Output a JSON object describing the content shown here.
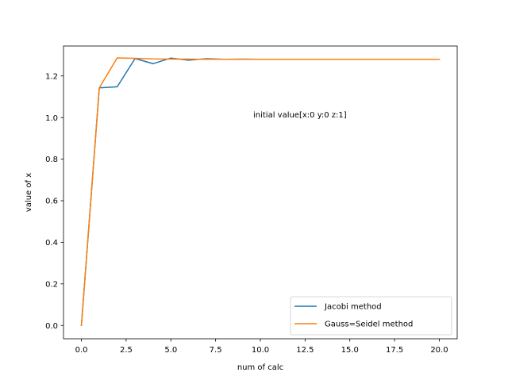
{
  "chart_data": {
    "type": "line",
    "title": "",
    "xlabel": "num of calc",
    "ylabel": "value of x",
    "xlim": [
      -1,
      21
    ],
    "ylim": [
      -0.064,
      1.344
    ],
    "xticks": [
      0,
      2.5,
      5,
      7.5,
      10,
      12.5,
      15,
      17.5,
      20
    ],
    "xtick_labels": [
      "0.0",
      "2.5",
      "5.0",
      "7.5",
      "10.0",
      "12.5",
      "15.0",
      "17.5",
      "20.0"
    ],
    "yticks": [
      0,
      0.2,
      0.4,
      0.6,
      0.8,
      1.0,
      1.2
    ],
    "ytick_labels": [
      "0.0",
      "0.2",
      "0.4",
      "0.6",
      "0.8",
      "1.0",
      "1.2"
    ],
    "grid": false,
    "legend_position": "lower-right",
    "annotation": {
      "text": "initial value[x:0 y:0 z:1]",
      "x": 9.6,
      "y": 1.0
    },
    "x": [
      0,
      1,
      2,
      3,
      4,
      5,
      6,
      7,
      8,
      9,
      10,
      11,
      12,
      13,
      14,
      15,
      16,
      17,
      18,
      19,
      20
    ],
    "series": [
      {
        "name": "Jacobi method",
        "color": "#1f77b4",
        "values": [
          0,
          1.143,
          1.148,
          1.284,
          1.259,
          1.286,
          1.276,
          1.283,
          1.28,
          1.281,
          1.28,
          1.28,
          1.28,
          1.28,
          1.28,
          1.28,
          1.28,
          1.28,
          1.28,
          1.28,
          1.28
        ]
      },
      {
        "name": "Gauss=Seidel method",
        "color": "#ff7f0e",
        "values": [
          0,
          1.143,
          1.287,
          1.285,
          1.282,
          1.281,
          1.281,
          1.28,
          1.28,
          1.28,
          1.28,
          1.28,
          1.28,
          1.28,
          1.28,
          1.28,
          1.28,
          1.28,
          1.28,
          1.28,
          1.28
        ]
      }
    ]
  }
}
